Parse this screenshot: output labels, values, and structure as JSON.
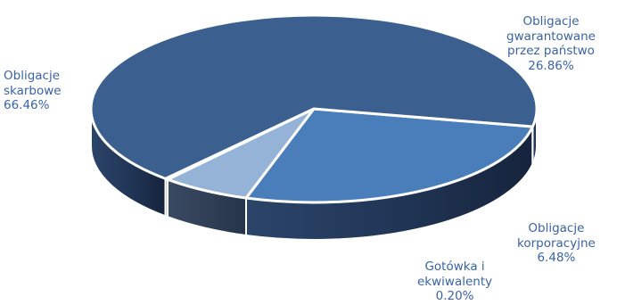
{
  "chart_data": {
    "type": "pie",
    "style": "3d",
    "legend": "none",
    "slices": [
      {
        "label": [
          "Obligacje",
          "skarbowe"
        ],
        "value": 66.46,
        "value_label": "66.46%",
        "color": "#3b5f8f"
      },
      {
        "label": [
          "Obligacje",
          "gwarantowane",
          "przez państwo"
        ],
        "value": 26.86,
        "value_label": "26.86%",
        "color": "#4a7ebb"
      },
      {
        "label": [
          "Obligacje",
          "korporacyjne"
        ],
        "value": 6.48,
        "value_label": "6.48%",
        "color": "#95b3d7"
      },
      {
        "label": [
          "Gotówka i",
          "ekwiwalenty"
        ],
        "value": 0.2,
        "value_label": "0.20%",
        "color": "#b8cce4"
      }
    ]
  }
}
